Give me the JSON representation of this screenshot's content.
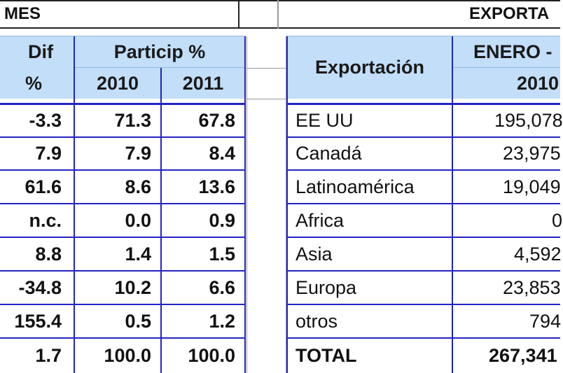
{
  "top_band": {
    "left_label": "MES",
    "right_label": "EXPORTA"
  },
  "left_table": {
    "dif_header": "Dif",
    "dif_unit": "%",
    "particip_header": "Particip %",
    "year_a": "2010",
    "year_b": "2011",
    "rows": [
      {
        "dif": "-3.3",
        "p2010": "71.3",
        "p2011": "67.8"
      },
      {
        "dif": "7.9",
        "p2010": "7.9",
        "p2011": "8.4"
      },
      {
        "dif": "61.6",
        "p2010": "8.6",
        "p2011": "13.6"
      },
      {
        "dif": "n.c.",
        "p2010": "0.0",
        "p2011": "0.9"
      },
      {
        "dif": "8.8",
        "p2010": "1.4",
        "p2011": "1.5"
      },
      {
        "dif": "-34.8",
        "p2010": "10.2",
        "p2011": "6.6"
      },
      {
        "dif": "155.4",
        "p2010": "0.5",
        "p2011": "1.2"
      },
      {
        "dif": "1.7",
        "p2010": "100.0",
        "p2011": "100.0"
      }
    ]
  },
  "right_table": {
    "export_header": "Exportación",
    "period_header": "ENERO -",
    "year": "2010",
    "rows": [
      {
        "region": "EE UU",
        "value": "195,078"
      },
      {
        "region": "Canadá",
        "value": "23,975"
      },
      {
        "region": "Latinoamérica",
        "value": "19,049"
      },
      {
        "region": "Africa",
        "value": "0"
      },
      {
        "region": "Asia",
        "value": "4,592"
      },
      {
        "region": "Europa",
        "value": "23,853"
      },
      {
        "region": "otros",
        "value": "794"
      },
      {
        "region": "TOTAL",
        "value": "267,341"
      }
    ]
  },
  "colors": {
    "header_fill": "#c3def8",
    "grid_line": "#2323c8"
  }
}
